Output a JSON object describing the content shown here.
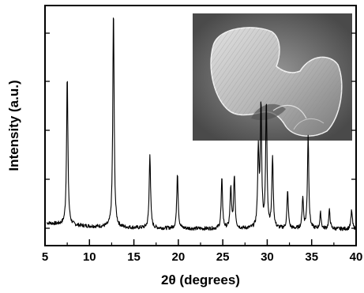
{
  "chart_data": {
    "type": "line",
    "title": "",
    "xlabel": "2θ (degrees)",
    "ylabel": "Intensity (a.u.)",
    "xlim": [
      5,
      40
    ],
    "x_ticks": [
      5,
      10,
      15,
      20,
      25,
      30,
      35,
      40
    ],
    "x_tick_labels": [
      "5",
      "10",
      "15",
      "20",
      "25",
      "30",
      "35",
      "40"
    ],
    "y_ticks_labeled": false,
    "grid": false,
    "legend": "none",
    "line_color": "#000000",
    "inset": "SEM micrograph of a dumbbell-shaped particle (grayscale)",
    "peaks": [
      {
        "x": 7.5,
        "height": 0.48
      },
      {
        "x": 12.7,
        "height": 0.7
      },
      {
        "x": 16.8,
        "height": 0.24
      },
      {
        "x": 19.9,
        "height": 0.18
      },
      {
        "x": 24.9,
        "height": 0.16
      },
      {
        "x": 25.9,
        "height": 0.13
      },
      {
        "x": 26.3,
        "height": 0.17
      },
      {
        "x": 29.0,
        "height": 0.25
      },
      {
        "x": 29.3,
        "height": 0.39
      },
      {
        "x": 29.9,
        "height": 0.4
      },
      {
        "x": 30.6,
        "height": 0.23
      },
      {
        "x": 32.3,
        "height": 0.12
      },
      {
        "x": 34.0,
        "height": 0.1
      },
      {
        "x": 34.6,
        "height": 0.3
      },
      {
        "x": 36.0,
        "height": 0.05
      },
      {
        "x": 37.0,
        "height": 0.06
      },
      {
        "x": 39.5,
        "height": 0.06
      }
    ]
  }
}
